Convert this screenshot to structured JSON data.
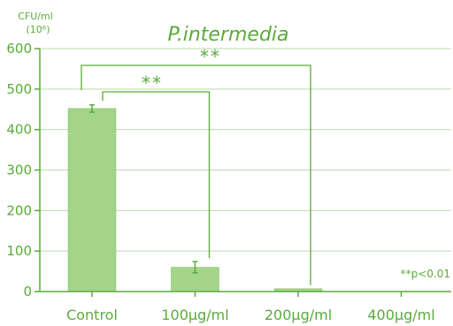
{
  "chart_data": {
    "type": "bar",
    "title": "P.intermedia",
    "ylabel": "CFU/ml",
    "ylabel_unit": "(10⁶)",
    "categories": [
      "Control",
      "100μg/ml",
      "200μg/ml",
      "400μg/ml"
    ],
    "values": [
      452,
      60,
      7,
      0
    ],
    "errors": [
      9,
      14,
      0,
      0
    ],
    "ylim": [
      0,
      600
    ],
    "yticks": [
      "0",
      "100",
      "200",
      "300",
      "400",
      "500",
      "600"
    ],
    "grid": true,
    "significance": [
      {
        "from": "Control",
        "to": "100μg/ml",
        "label": "**"
      },
      {
        "from": "Control",
        "to": "200μg/ml",
        "label": "**"
      }
    ],
    "note": "**p<0.01",
    "colors": {
      "bar": "#a3d48a",
      "bar_edge": "#7fbf62",
      "axis": "#5aab3a",
      "grid": "#b9dcaa"
    }
  }
}
